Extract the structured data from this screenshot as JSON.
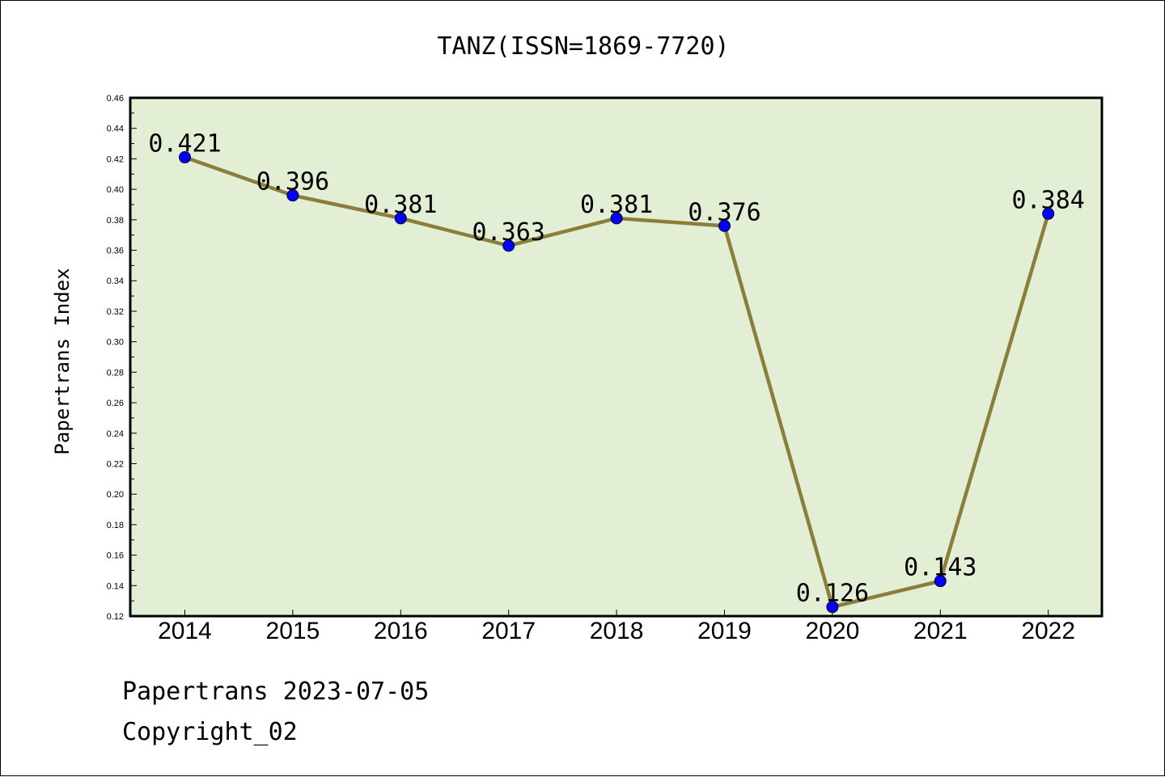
{
  "chart_data": {
    "type": "line",
    "title": "TANZ(ISSN=1869-7720)",
    "xlabel": "",
    "ylabel": "Papertrans Index",
    "categories": [
      "2014",
      "2015",
      "2016",
      "2017",
      "2018",
      "2019",
      "2020",
      "2021",
      "2022"
    ],
    "series": [
      {
        "values": [
          0.421,
          0.396,
          0.381,
          0.363,
          0.381,
          0.376,
          0.126,
          0.143,
          0.384
        ],
        "labels": [
          "0.421",
          "0.396",
          "0.381",
          "0.363",
          "0.381",
          "0.376",
          "0.126",
          "0.143",
          "0.384"
        ]
      }
    ],
    "ylim": [
      0.12,
      0.46
    ],
    "yticks": [
      "0.12",
      "0.14",
      "0.16",
      "0.18",
      "0.20",
      "0.22",
      "0.24",
      "0.26",
      "0.28",
      "0.30",
      "0.32",
      "0.34",
      "0.36",
      "0.38",
      "0.40",
      "0.42",
      "0.44",
      "0.46"
    ],
    "grid": false,
    "legend": "none",
    "colors": {
      "plot_background": "#e2efd5",
      "line": "#8b7d3a",
      "marker": "#0000ff"
    }
  },
  "footer": {
    "line1": "Papertrans 2023-07-05",
    "line2": "Copyright_02"
  }
}
